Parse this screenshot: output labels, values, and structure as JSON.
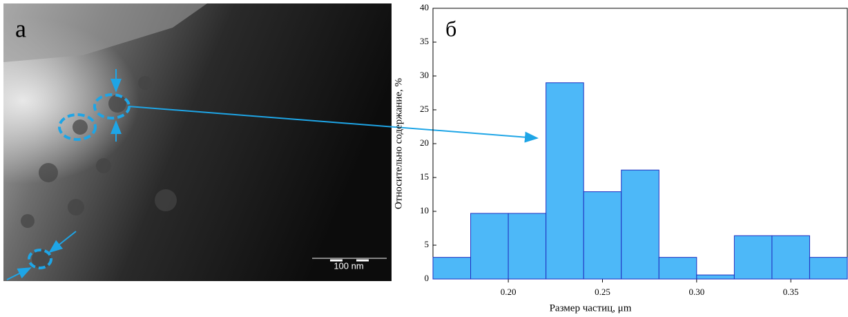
{
  "image": {
    "label": "а",
    "scale_bar": "100 nm"
  },
  "chart_data": {
    "type": "histogram",
    "panel_label": "б",
    "xlabel": "Размер частиц, μm",
    "ylabel": "Относительно содержание, %",
    "bins": [
      0.16,
      0.18,
      0.2,
      0.22,
      0.24,
      0.26,
      0.28,
      0.3,
      0.32,
      0.34,
      0.36,
      0.38
    ],
    "values": [
      3.2,
      9.7,
      9.7,
      29,
      12.9,
      16.1,
      3.2,
      0.6,
      6.4,
      6.4,
      3.2
    ],
    "color": "#4db8f8",
    "edgecolor": "#1f2fc0",
    "xlim": [
      0.16,
      0.38
    ],
    "xticks": [
      {
        "value": 0.2,
        "label": "0.20"
      },
      0.25,
      {
        "value": 0.3,
        "label": "0.30"
      },
      0.35
    ],
    "ylim": [
      0,
      40
    ],
    "yticks": [
      0,
      5,
      10,
      15,
      20,
      25,
      30,
      35,
      40
    ]
  }
}
